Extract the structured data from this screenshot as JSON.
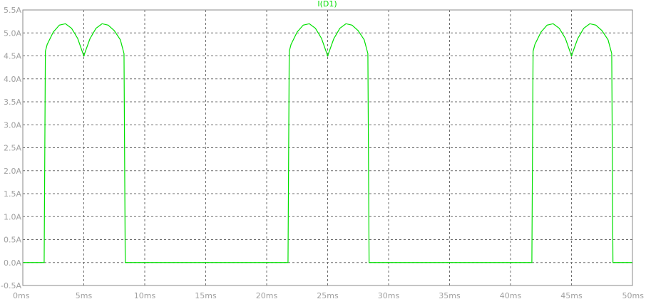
{
  "chart_data": {
    "type": "line",
    "title": "I(D1)",
    "colors": {
      "trace": "#00e000",
      "grid": "#6e6e6e",
      "tick_text": "#a0a0a0",
      "background": "#ffffff"
    },
    "grid": true,
    "xlim": [
      0,
      50
    ],
    "ylim": [
      -0.5,
      5.5
    ],
    "x_ticks": [
      0,
      5,
      10,
      15,
      20,
      25,
      30,
      35,
      40,
      45,
      50
    ],
    "x_tick_labels": [
      "0ms",
      "5ms",
      "10ms",
      "15ms",
      "20ms",
      "25ms",
      "30ms",
      "35ms",
      "40ms",
      "45ms",
      "50ms"
    ],
    "y_ticks": [
      -0.5,
      0.0,
      0.5,
      1.0,
      1.5,
      2.0,
      2.5,
      3.0,
      3.5,
      4.0,
      4.5,
      5.0,
      5.5
    ],
    "y_tick_labels": [
      "-0.5A",
      "0.0A",
      "0.5A",
      "1.0A",
      "1.5A",
      "2.0A",
      "2.5A",
      "3.0A",
      "3.5A",
      "4.0A",
      "4.5A",
      "5.0A",
      "5.5A"
    ],
    "series": [
      {
        "name": "I(D1)",
        "x": [
          0,
          1.75,
          1.85,
          2.0,
          2.5,
          3.0,
          3.5,
          4.0,
          4.5,
          5.0,
          5.5,
          6.0,
          6.5,
          7.0,
          7.5,
          8.0,
          8.3,
          8.4,
          8.5,
          21.5,
          21.75,
          21.85,
          22.0,
          22.5,
          23.0,
          23.5,
          24.0,
          24.5,
          25.0,
          25.5,
          26.0,
          26.5,
          27.0,
          27.5,
          28.0,
          28.3,
          28.4,
          28.5,
          41.5,
          41.75,
          41.85,
          42.0,
          42.5,
          43.0,
          43.5,
          44.0,
          44.5,
          45.0,
          45.5,
          46.0,
          46.5,
          47.0,
          47.5,
          48.0,
          48.3,
          48.4,
          48.5,
          50
        ],
        "y": [
          0,
          0,
          4.6,
          4.75,
          5.02,
          5.17,
          5.2,
          5.1,
          4.88,
          4.5,
          4.87,
          5.1,
          5.2,
          5.17,
          5.05,
          4.85,
          4.55,
          0,
          0,
          0,
          0,
          4.6,
          4.75,
          5.02,
          5.17,
          5.2,
          5.1,
          4.88,
          4.5,
          4.87,
          5.1,
          5.2,
          5.17,
          5.05,
          4.85,
          4.55,
          0,
          0,
          0,
          0,
          4.6,
          4.75,
          5.02,
          5.17,
          5.2,
          5.1,
          4.88,
          4.5,
          4.87,
          5.1,
          5.2,
          5.17,
          5.05,
          4.85,
          4.55,
          0,
          0,
          0
        ]
      }
    ]
  }
}
